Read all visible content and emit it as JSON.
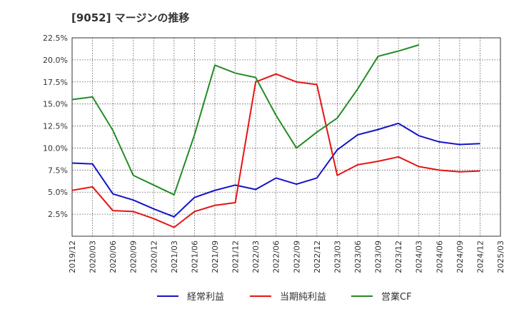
{
  "chart_data": {
    "type": "line",
    "title": "[9052]  マージンの推移",
    "xlabel": "",
    "ylabel": "",
    "x": [
      "2019/12",
      "2020/03",
      "2020/06",
      "2020/09",
      "2020/12",
      "2021/03",
      "2021/06",
      "2021/09",
      "2021/12",
      "2022/03",
      "2022/06",
      "2022/09",
      "2022/12",
      "2023/03",
      "2023/06",
      "2023/09",
      "2023/12",
      "2024/03",
      "2024/06",
      "2024/09",
      "2024/12",
      "2025/03"
    ],
    "ylim": [
      0,
      22.5
    ],
    "yticks": [
      2.5,
      5.0,
      7.5,
      10.0,
      12.5,
      15.0,
      17.5,
      20.0,
      22.5
    ],
    "ytick_labels": [
      "2.5%",
      "5.0%",
      "7.5%",
      "10.0%",
      "12.5%",
      "15.0%",
      "17.5%",
      "20.0%",
      "22.5%"
    ],
    "grid": true,
    "legend_position": "bottom",
    "series": [
      {
        "name": "経常利益",
        "color": "#1414c8",
        "values": [
          8.3,
          8.2,
          4.8,
          4.1,
          3.1,
          2.2,
          4.4,
          5.2,
          5.8,
          5.3,
          6.6,
          5.9,
          6.6,
          9.8,
          11.5,
          12.1,
          12.8,
          11.4,
          10.7,
          10.4,
          10.5,
          null
        ]
      },
      {
        "name": "当期純利益",
        "color": "#e61414",
        "values": [
          5.2,
          5.6,
          2.9,
          2.8,
          2.0,
          1.0,
          2.8,
          3.5,
          3.8,
          17.5,
          18.4,
          17.5,
          17.2,
          6.9,
          8.1,
          8.5,
          9.0,
          7.9,
          7.5,
          7.3,
          7.4,
          null
        ]
      },
      {
        "name": "営業CF",
        "color": "#238c23",
        "values": [
          15.5,
          15.8,
          12.0,
          6.9,
          5.8,
          4.7,
          11.5,
          19.4,
          18.5,
          18.0,
          13.7,
          10.0,
          11.8,
          13.4,
          16.7,
          20.4,
          21.0,
          21.7,
          null,
          null,
          null,
          null
        ]
      }
    ]
  }
}
